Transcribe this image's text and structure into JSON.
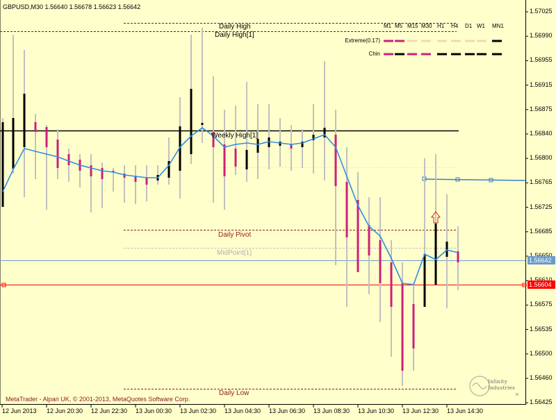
{
  "header": {
    "symbol": "GBPUSD,M30",
    "ohlc": "1.56640 1.56678 1.56623 1.56642"
  },
  "footer": {
    "copyright": "MetaTrader - Alpari UK, © 2001-2013, MetaQuotes Software Corp."
  },
  "x_axis": [
    "12 Jun 2013",
    "12 Jun 20:30",
    "12 Jun 22:30",
    "13 Jun 00:30",
    "13 Jun 02:30",
    "13 Jun 04:30",
    "13 Jun 06:30",
    "13 Jun 08:30",
    "13 Jun 10:30",
    "13 Jun 12:30",
    "13 Jun 14:30"
  ],
  "y_axis": [
    "1.57025",
    "1.56990",
    "1.56955",
    "1.56915",
    "1.56875",
    "1.56840",
    "1.56800",
    "1.56765",
    "1.56725",
    "1.56685",
    "1.56650",
    "1.56610",
    "1.56575",
    "1.56535",
    "1.56500",
    "1.56460",
    "1.56425"
  ],
  "price_labels": {
    "bid": "1.56642",
    "line2": "1.56604"
  },
  "level_labels": {
    "daily_high": "Daily High",
    "daily_high_1": "Daily High[1]",
    "weekly_high_1": "Weekly High[1]",
    "daily_pivot": "Daily Pivot",
    "midpoint_1": "MidPoint[1]",
    "daily_low": "Daily Low"
  },
  "indicator_panel": {
    "timeframes": [
      "M1",
      "M5",
      "M15",
      "M30",
      "H1",
      "H4",
      "D1",
      "W1",
      "MN1"
    ],
    "rows": [
      {
        "label": "Extreme(0.17)"
      },
      {
        "label": "Chin"
      }
    ]
  },
  "watermark": {
    "text": "Infinity Industries"
  },
  "colors": {
    "background": "#ffffcc",
    "bull_candle": "#000000",
    "bear_candle": "#cc1f7a",
    "wick": "#c0c0c0",
    "ma_line": "#2f8de4",
    "bid_line": "#6b9bc9",
    "red_line": "#ff0000",
    "weekly_high": "#000000",
    "pivot": "#8b1c1c",
    "right_line": "#3a7fc6"
  }
}
